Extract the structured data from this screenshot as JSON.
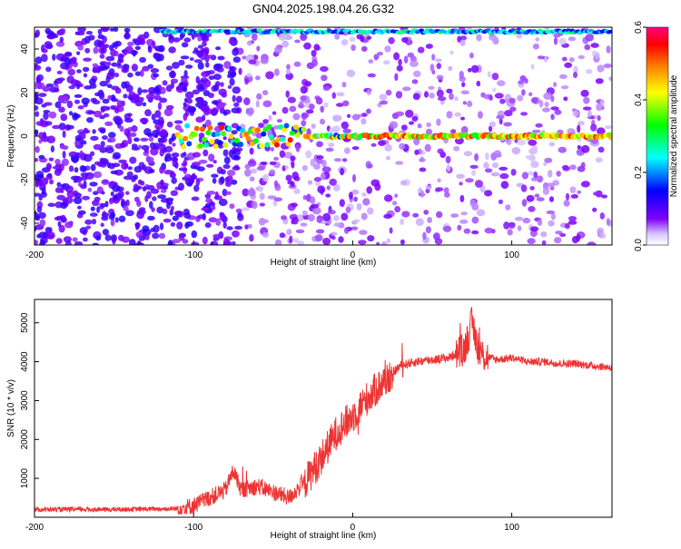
{
  "title": "GN04.2025.198.04.26.G32",
  "colorbar": {
    "label": "Normalized spectral amplitude",
    "range": [
      0.0,
      0.6
    ],
    "ticks": [
      "0.0",
      "0.2",
      "0.4",
      "0.6"
    ],
    "stops": [
      "#ffffff",
      "#7f00ff",
      "#0000ff",
      "#00ffff",
      "#00ff00",
      "#ffff00",
      "#ff8000",
      "#ff0000",
      "#ff0080"
    ]
  },
  "chart_data": [
    {
      "type": "heatmap",
      "title": "",
      "xlabel": "Height of straight line (km)",
      "ylabel": "Frequency (Hz)",
      "xlim": [
        -200,
        163
      ],
      "ylim": [
        -50,
        50
      ],
      "xticks": [
        "-200",
        "-100",
        "0",
        "100"
      ],
      "yticks": [
        "-40",
        "-20",
        "0",
        "20",
        "40"
      ],
      "features": [
        {
          "label": "",
          "x_start": -110,
          "x_end": 163,
          "frequency": 0,
          "peak_amplitude": 0.55
        },
        {
          "label": "",
          "x_start": -120,
          "x_end": 163,
          "frequency": 48,
          "peak_amplitude": 0.3
        },
        {
          "label": "",
          "x_start": -200,
          "x_end": -70,
          "background": "dense noise"
        }
      ]
    },
    {
      "type": "line",
      "title": "",
      "xlabel": "Height of straight line (km)",
      "ylabel": "SNR (10 * v/v)",
      "xlim": [
        -200,
        163
      ],
      "ylim": [
        0,
        5600
      ],
      "xticks": [
        "-200",
        "-100",
        "0",
        "100"
      ],
      "yticks": [
        "1000",
        "2000",
        "3000",
        "4000",
        "5000"
      ],
      "color": "#ee3333",
      "series": [
        {
          "x": [
            -200,
            -150,
            -110,
            -100,
            -90,
            -80,
            -75,
            -70,
            -60,
            -50,
            -40,
            -30,
            -20,
            -10,
            0,
            10,
            20,
            30,
            40,
            50,
            60,
            70,
            75,
            80,
            90,
            100,
            110,
            120,
            130,
            140,
            150,
            163
          ],
          "values": [
            200,
            200,
            220,
            300,
            500,
            700,
            1200,
            700,
            800,
            650,
            500,
            900,
            1500,
            2200,
            2600,
            3100,
            3500,
            3900,
            4000,
            4050,
            4100,
            4300,
            5000,
            4200,
            4050,
            4100,
            4000,
            4000,
            3950,
            3950,
            3900,
            3850
          ]
        }
      ]
    }
  ]
}
